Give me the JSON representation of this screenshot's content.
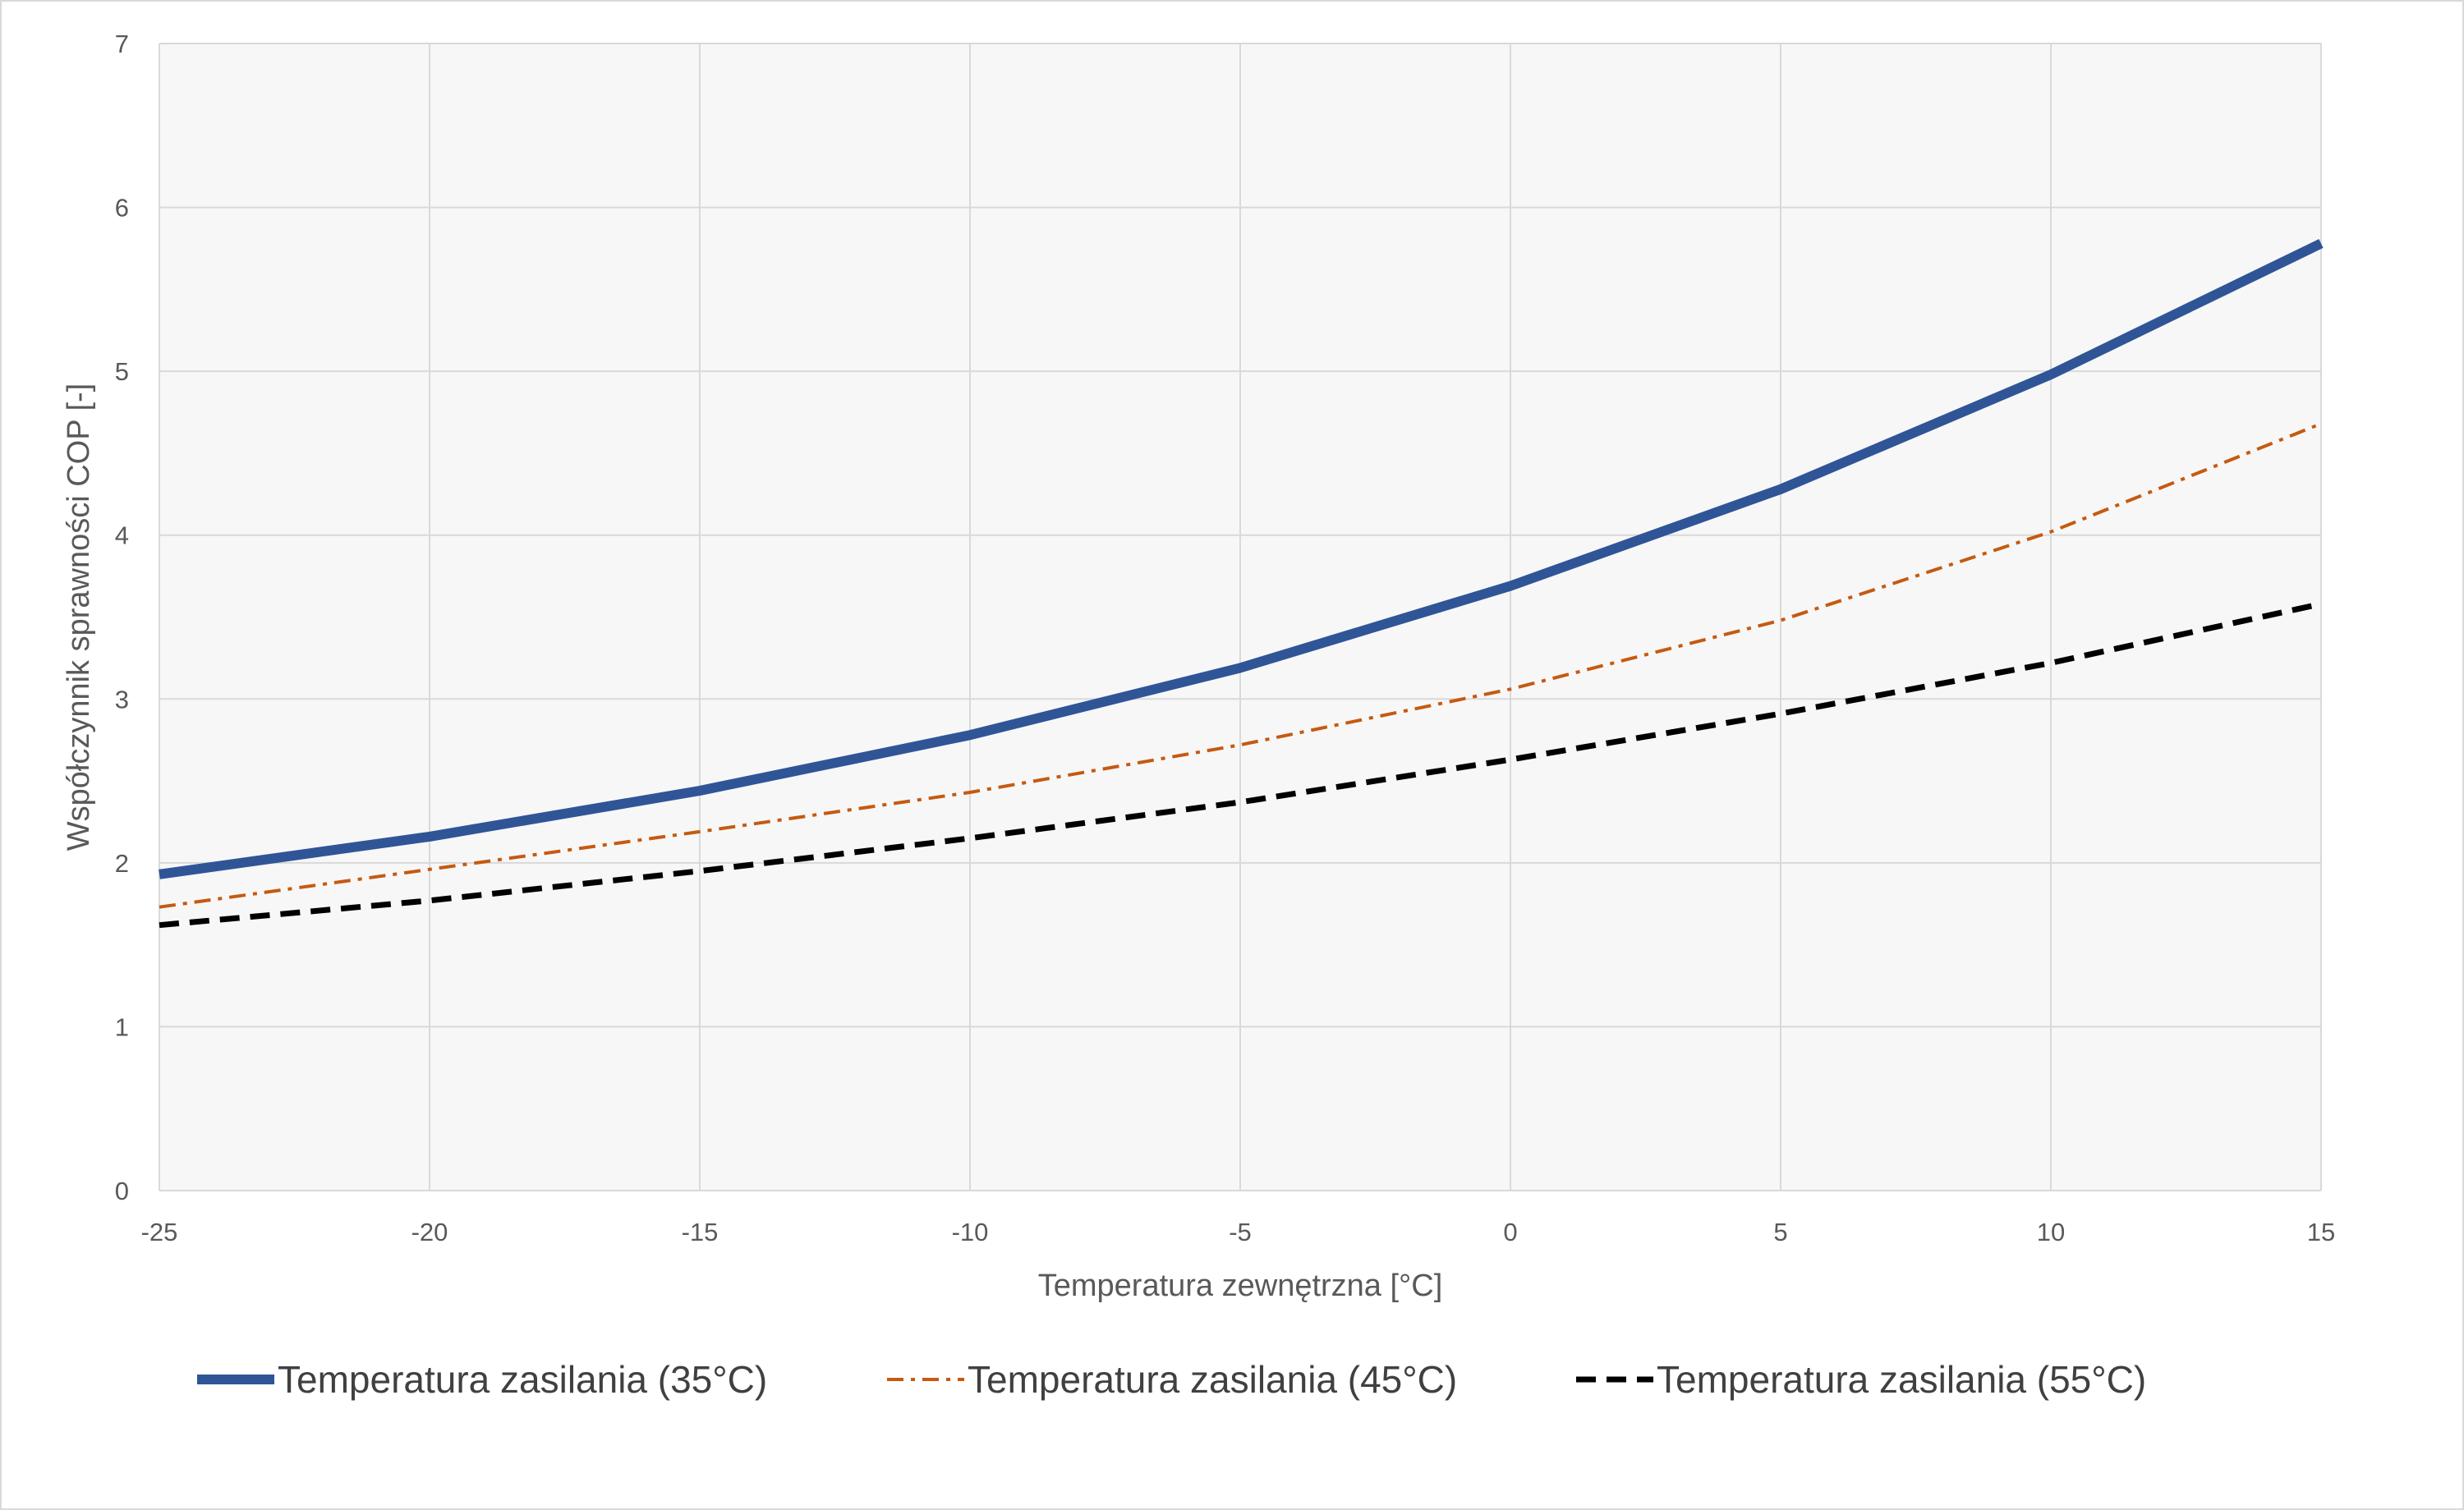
{
  "chart_data": {
    "type": "line",
    "title": "",
    "xlabel": "Temperatura zewnętrzna [°C]",
    "ylabel": "Współczynnik sprawności COP [-]",
    "x": [
      -25,
      -20,
      -15,
      -10,
      -5,
      0,
      5,
      10,
      15
    ],
    "xlim": [
      -25,
      15
    ],
    "ylim": [
      0,
      7
    ],
    "xticks": [
      "-25",
      "-20",
      "-15",
      "-10",
      "-5",
      "0",
      "5",
      "10",
      "15"
    ],
    "yticks": [
      "0",
      "1",
      "2",
      "3",
      "4",
      "5",
      "6",
      "7"
    ],
    "grid": true,
    "legend_position": "bottom",
    "series": [
      {
        "name": "Temperatura zasilania (35°C)",
        "values": [
          1.93,
          2.16,
          2.44,
          2.78,
          3.19,
          3.69,
          4.28,
          4.98,
          5.78
        ],
        "color": "#2f5597",
        "style": "solid"
      },
      {
        "name": "Temperatura zasilania (45°C)",
        "values": [
          1.73,
          1.96,
          2.19,
          2.43,
          2.72,
          3.06,
          3.48,
          4.02,
          4.68
        ],
        "color": "#c55a11",
        "style": "dash-dot"
      },
      {
        "name": "Temperatura zasilania (55°C)",
        "values": [
          1.62,
          1.77,
          1.95,
          2.15,
          2.37,
          2.63,
          2.91,
          3.22,
          3.58
        ],
        "color": "#000000",
        "style": "dashed"
      }
    ]
  }
}
